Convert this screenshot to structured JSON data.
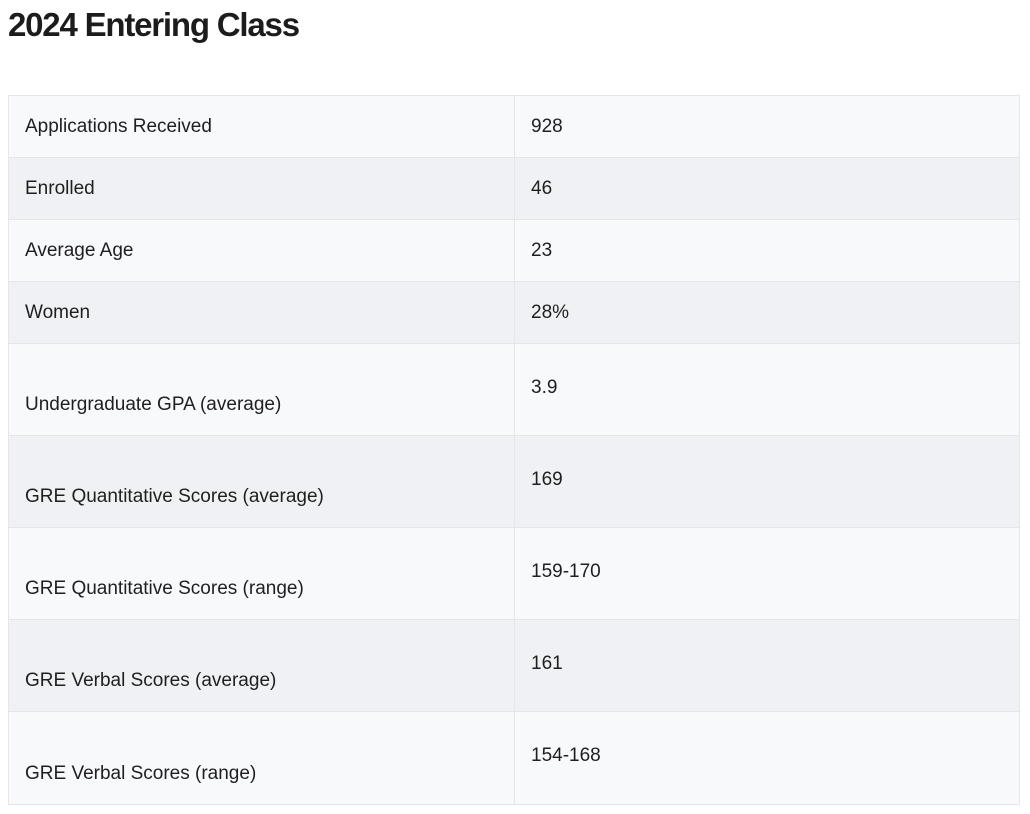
{
  "title": "2024 Entering Class",
  "rows": [
    {
      "label": "Applications Received",
      "value": "928"
    },
    {
      "label": "Enrolled",
      "value": "46"
    },
    {
      "label": "Average Age",
      "value": "23"
    },
    {
      "label": "Women",
      "value": "28%"
    },
    {
      "label": "Undergraduate GPA (average)",
      "value": "3.9"
    },
    {
      "label": "GRE Quantitative Scores (average)",
      "value": "169"
    },
    {
      "label": "GRE Quantitative Scores (range)",
      "value": "159-170"
    },
    {
      "label": "GRE Verbal Scores (average)",
      "value": "161"
    },
    {
      "label": "GRE Verbal Scores (range)",
      "value": "154-168"
    }
  ]
}
